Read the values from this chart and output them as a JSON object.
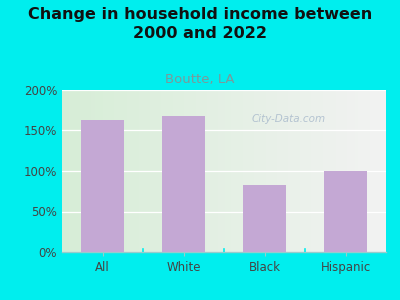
{
  "title": "Change in household income between\n2000 and 2022",
  "subtitle": "Boutte, LA",
  "categories": [
    "All",
    "White",
    "Black",
    "Hispanic"
  ],
  "values": [
    163,
    168,
    83,
    100
  ],
  "bar_color": "#C4A8D4",
  "background_outer": "#00EEEE",
  "background_chart_left": "#D6EDD6",
  "background_chart_right": "#F2F2F2",
  "title_fontsize": 11.5,
  "subtitle_fontsize": 9.5,
  "subtitle_color": "#7A9A9A",
  "tick_label_fontsize": 8.5,
  "ylim": [
    0,
    200
  ],
  "yticks": [
    0,
    50,
    100,
    150,
    200
  ],
  "ytick_labels": [
    "0%",
    "50%",
    "100%",
    "150%",
    "200%"
  ],
  "watermark": "City-Data.com",
  "watermark_color": "#AABBCC",
  "grid_color": "#E0E8E0"
}
